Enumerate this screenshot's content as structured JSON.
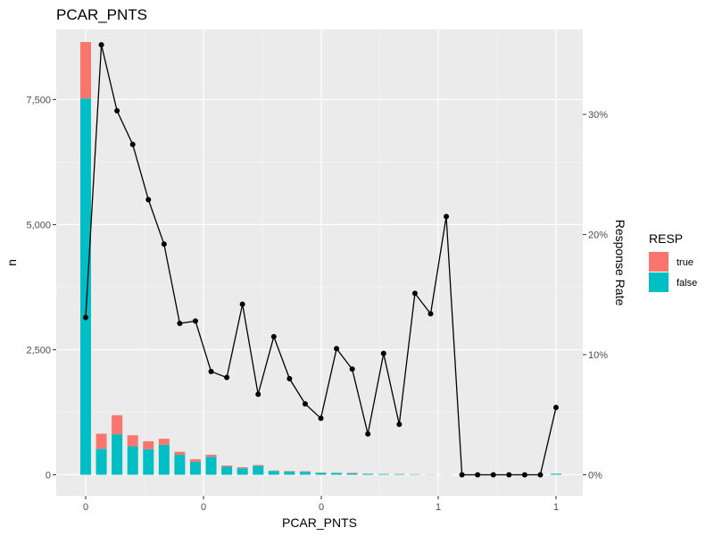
{
  "chart_data": {
    "type": "bar",
    "title": "PCAR_PNTS",
    "xlabel": "PCAR_PNTS",
    "ylabel": "n",
    "y2label": "Response Rate",
    "x_tick_labels": [
      "0",
      "0",
      "0",
      "1",
      "1"
    ],
    "y_ticks": [
      0,
      2500,
      5000,
      7500
    ],
    "y_tick_labels": [
      "0",
      "2,500",
      "5,000",
      "7,500"
    ],
    "ylim": [
      -420,
      8900
    ],
    "y2_ticks": [
      0,
      0.1,
      0.2,
      0.3
    ],
    "y2_tick_labels": [
      "0%",
      "10%",
      "20%",
      "30%"
    ],
    "y2lim": [
      -0.0175,
      0.3707
    ],
    "legend": {
      "title": "RESP",
      "placement": "right",
      "entries": [
        {
          "label": "true",
          "color": "#F8766D"
        },
        {
          "label": "false",
          "color": "#00BFC4"
        }
      ]
    },
    "grid": true,
    "series": [
      {
        "name": "false",
        "values": [
          7520,
          520,
          810,
          570,
          510,
          600,
          400,
          260,
          360,
          160,
          130,
          180,
          75,
          65,
          60,
          40,
          35,
          30,
          20,
          15,
          12,
          8,
          5,
          3,
          0,
          0,
          0,
          0,
          0,
          0,
          20
        ]
      },
      {
        "name": "true",
        "values": [
          1130,
          300,
          380,
          220,
          160,
          120,
          60,
          50,
          40,
          25,
          20,
          15,
          10,
          10,
          10,
          5,
          5,
          10,
          3,
          2,
          5,
          2,
          1,
          2,
          0,
          0,
          0,
          0,
          0,
          0,
          1
        ]
      }
    ],
    "response_rate": [
      0.131,
      0.358,
      0.303,
      0.275,
      0.229,
      0.192,
      0.126,
      0.128,
      0.086,
      0.081,
      0.142,
      0.067,
      0.115,
      0.08,
      0.059,
      0.047,
      0.105,
      0.088,
      0.034,
      0.101,
      0.042,
      0.151,
      0.134,
      0.215,
      0.0,
      0.0,
      0.0,
      0.0,
      0.0,
      0.0,
      0.056
    ]
  }
}
